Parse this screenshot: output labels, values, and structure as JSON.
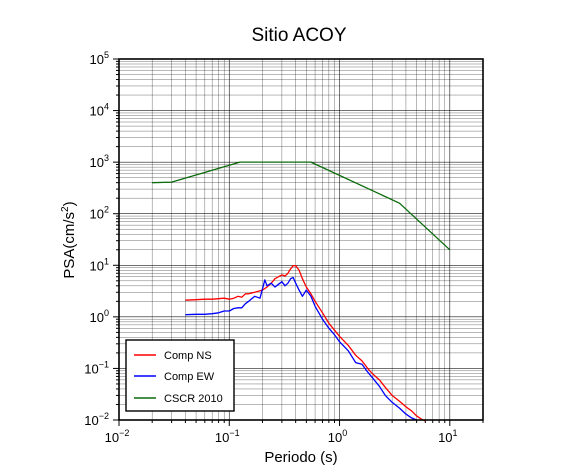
{
  "chart_data": {
    "type": "line",
    "title": "Sitio ACOY",
    "xlabel": "Periodo (s)",
    "ylabel": "PSA(cm/s",
    "ylabel_sup": "2",
    "ylabel_close": ")",
    "xscale": "log",
    "yscale": "log",
    "xlim": [
      0.01,
      20
    ],
    "ylim": [
      0.01,
      100000
    ],
    "grid": true,
    "legend_position": "bottom-left",
    "x_ticks": [
      {
        "value": 0.01,
        "base": "10",
        "exp": "−2"
      },
      {
        "value": 0.1,
        "base": "10",
        "exp": "−1"
      },
      {
        "value": 1,
        "base": "10",
        "exp": "0"
      },
      {
        "value": 10,
        "base": "10",
        "exp": "1"
      }
    ],
    "y_ticks": [
      {
        "value": 0.01,
        "base": "10",
        "exp": "−2"
      },
      {
        "value": 0.1,
        "base": "10",
        "exp": "−1"
      },
      {
        "value": 1,
        "base": "10",
        "exp": "0"
      },
      {
        "value": 10,
        "base": "10",
        "exp": "1"
      },
      {
        "value": 100,
        "base": "10",
        "exp": "2"
      },
      {
        "value": 1000,
        "base": "10",
        "exp": "3"
      },
      {
        "value": 10000,
        "base": "10",
        "exp": "4"
      },
      {
        "value": 100000,
        "base": "10",
        "exp": "5"
      }
    ],
    "series": [
      {
        "name": "Comp NS",
        "color": "#ff0000",
        "x": [
          0.04,
          0.05,
          0.06,
          0.07,
          0.08,
          0.09,
          0.1,
          0.11,
          0.12,
          0.13,
          0.14,
          0.15,
          0.17,
          0.19,
          0.2,
          0.22,
          0.24,
          0.26,
          0.28,
          0.3,
          0.32,
          0.34,
          0.36,
          0.38,
          0.4,
          0.43,
          0.46,
          0.5,
          0.55,
          0.6,
          0.7,
          0.8,
          0.9,
          1.0,
          1.2,
          1.4,
          1.6,
          1.8,
          2.0,
          2.3,
          2.6,
          3.0,
          3.5,
          4.0,
          4.5,
          5.0,
          5.5,
          6.0
        ],
        "y": [
          2.1,
          2.15,
          2.2,
          2.2,
          2.25,
          2.3,
          2.2,
          2.3,
          2.5,
          2.4,
          2.8,
          2.8,
          3.0,
          3.2,
          3.3,
          3.8,
          4.5,
          5.5,
          6.0,
          6.5,
          6.2,
          7.0,
          8.5,
          9.8,
          9.8,
          8.0,
          5.5,
          3.8,
          2.8,
          2.0,
          1.2,
          0.75,
          0.55,
          0.42,
          0.28,
          0.18,
          0.14,
          0.1,
          0.078,
          0.06,
          0.043,
          0.03,
          0.023,
          0.018,
          0.015,
          0.012,
          0.0105,
          0.0095
        ]
      },
      {
        "name": "Comp EW",
        "color": "#0000ff",
        "x": [
          0.04,
          0.05,
          0.06,
          0.07,
          0.08,
          0.09,
          0.1,
          0.11,
          0.12,
          0.13,
          0.14,
          0.15,
          0.17,
          0.19,
          0.2,
          0.21,
          0.22,
          0.24,
          0.26,
          0.28,
          0.3,
          0.32,
          0.34,
          0.36,
          0.38,
          0.4,
          0.43,
          0.46,
          0.5,
          0.55,
          0.6,
          0.7,
          0.8,
          0.9,
          1.0,
          1.2,
          1.4,
          1.6,
          1.8,
          2.0,
          2.3,
          2.6,
          3.0,
          3.5,
          4.0,
          4.5,
          5.0
        ],
        "y": [
          1.1,
          1.12,
          1.12,
          1.15,
          1.2,
          1.3,
          1.3,
          1.45,
          1.5,
          1.5,
          1.8,
          2.0,
          2.5,
          2.3,
          3.5,
          5.2,
          4.0,
          4.5,
          3.8,
          4.3,
          4.8,
          4.0,
          4.5,
          5.5,
          5.8,
          4.5,
          3.3,
          2.5,
          3.3,
          2.5,
          1.6,
          0.9,
          0.6,
          0.45,
          0.33,
          0.22,
          0.13,
          0.12,
          0.085,
          0.065,
          0.045,
          0.03,
          0.022,
          0.017,
          0.013,
          0.011,
          0.01
        ]
      },
      {
        "name": "CSCR 2010",
        "color": "#0b6b0b",
        "x": [
          0.02,
          0.03,
          0.125,
          0.55,
          3.5,
          10
        ],
        "y": [
          400,
          410,
          1000,
          1000,
          160,
          20
        ]
      }
    ]
  }
}
